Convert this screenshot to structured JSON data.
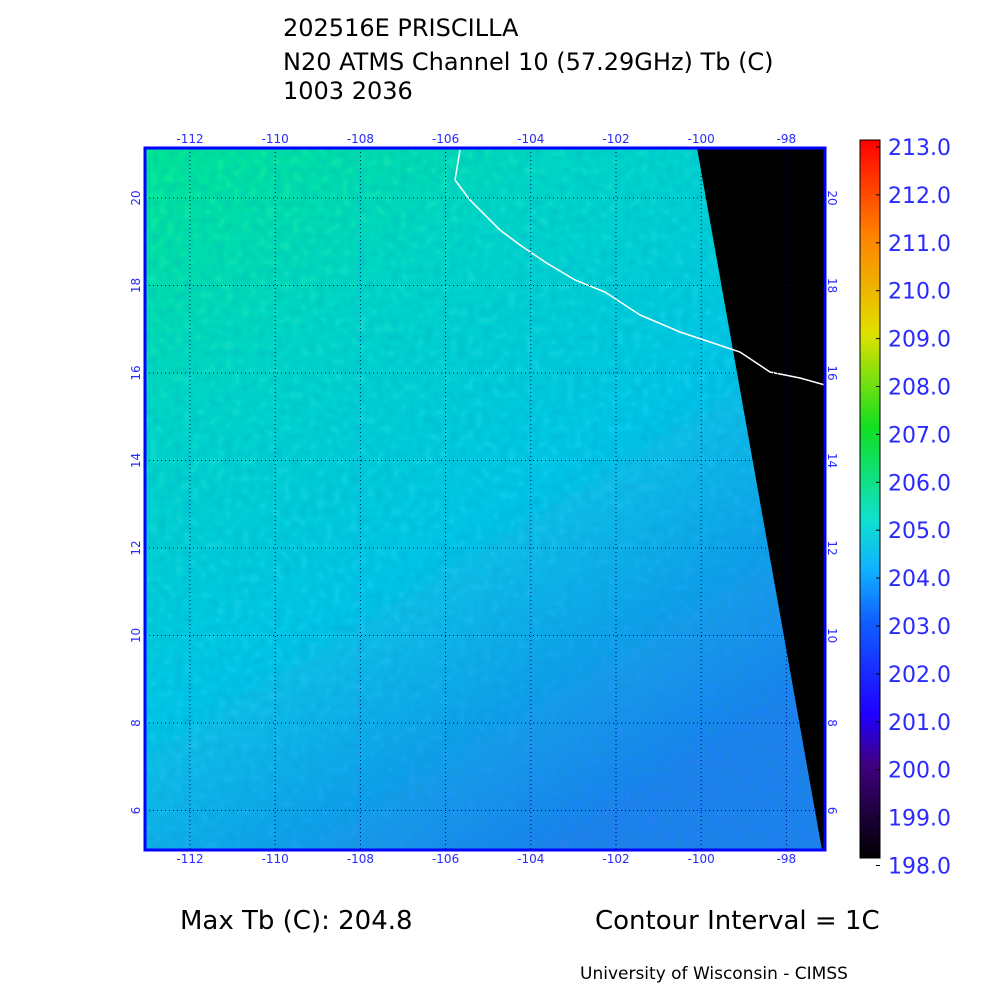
{
  "title": {
    "lines": [
      "202516E PRISCILLA",
      "N20 ATMS Channel 10 (57.29GHz) Tb (C)",
      "1003 2036"
    ]
  },
  "map": {
    "lon_labels": [
      "-112",
      "-110",
      "-108",
      "-106",
      "-104",
      "-102",
      "-100",
      "-98"
    ],
    "lat_labels": [
      "20",
      "18",
      "16",
      "14",
      "12",
      "10",
      "8",
      "6"
    ]
  },
  "colorbar": {
    "labels": [
      "213.0",
      "212.0",
      "211.0",
      "210.0",
      "209.0",
      "208.0",
      "207.0",
      "206.0",
      "205.0",
      "204.0",
      "203.0",
      "202.0",
      "201.0",
      "200.0",
      "199.0",
      "198.0"
    ]
  },
  "footer": {
    "max_tb": "Max Tb (C): 204.8",
    "contour": "Contour Interval = 1C",
    "credit": "University of Wisconsin - CIMSS"
  }
}
